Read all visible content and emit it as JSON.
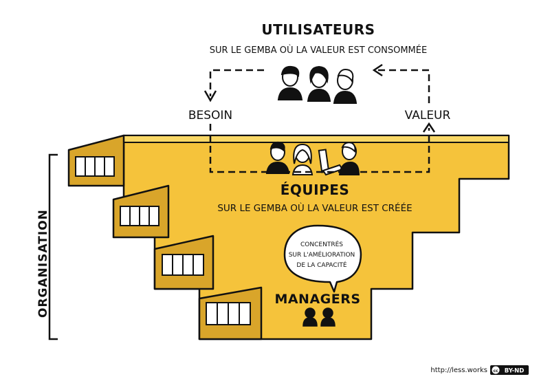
{
  "users": {
    "title": "UTILISATEURS",
    "subtitle": "SUR LE GEMBA OÙ LA VALEUR EST CONSOMMÉE"
  },
  "flow": {
    "need_label": "BESOIN",
    "value_label": "VALEUR"
  },
  "teams": {
    "title": "ÉQUIPES",
    "subtitle": "SUR LE GEMBA OÙ LA VALEUR EST CRÉÉE"
  },
  "managers": {
    "title": "MANAGERS",
    "bubble_lines": [
      "CONCENTRÉS",
      "SUR L'AMÉLIORATION",
      "DE LA CAPACITÉ"
    ]
  },
  "organisation_label": "ORGANISATION",
  "footer": {
    "url": "http://less.works",
    "license": "BY-ND"
  },
  "colors": {
    "yellow": "#f5c33b",
    "dark_yellow": "#d9a52a",
    "ink": "#111111"
  }
}
